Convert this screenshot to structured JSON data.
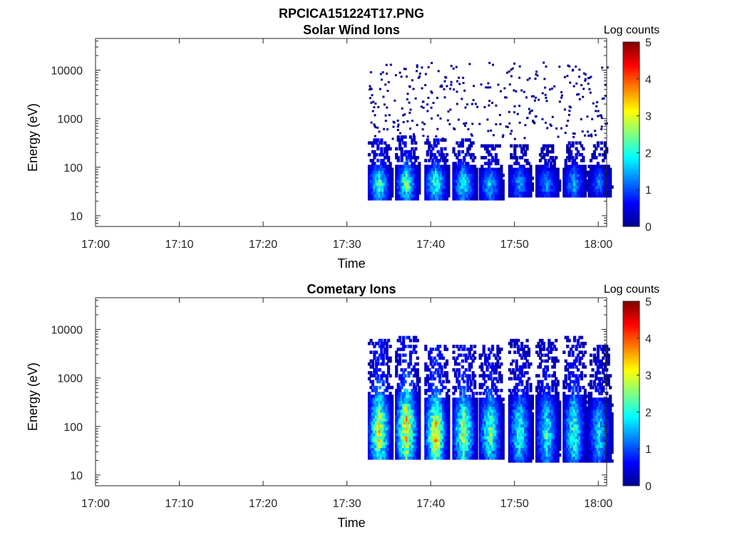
{
  "figure": {
    "title": "RPCICA151224T17.PNG"
  },
  "chart_data": [
    {
      "type": "heatmap",
      "title": "Solar Wind Ions",
      "xlabel": "Time",
      "ylabel": "Energy (eV)",
      "x_ticks": [
        "17:00",
        "17:10",
        "17:20",
        "17:30",
        "17:40",
        "17:50",
        "18:00"
      ],
      "x_range": [
        "17:00",
        "18:01"
      ],
      "y_scale": "log",
      "y_ticks": [
        10,
        100,
        1000,
        10000
      ],
      "y_tick_labels": [
        "10",
        "100",
        "1000",
        "10000"
      ],
      "y_range": [
        6,
        45000
      ],
      "colorbar": {
        "label": "Log counts",
        "range": [
          0,
          5
        ],
        "ticks": [
          "0",
          "1",
          "2",
          "3",
          "4",
          "5"
        ],
        "colormap": "jet"
      },
      "bursts": [
        {
          "time": "17:33:45",
          "energy_low": 22,
          "energy_high": 380,
          "peak_log_counts": 2.6
        },
        {
          "time": "17:37:00",
          "energy_low": 22,
          "energy_high": 450,
          "peak_log_counts": 2.7
        },
        {
          "time": "17:40:30",
          "energy_low": 22,
          "energy_high": 420,
          "peak_log_counts": 2.6
        },
        {
          "time": "17:43:50",
          "energy_low": 22,
          "energy_high": 380,
          "peak_log_counts": 2.4
        },
        {
          "time": "17:47:00",
          "energy_low": 22,
          "energy_high": 300,
          "peak_log_counts": 2.0
        },
        {
          "time": "17:50:30",
          "energy_low": 25,
          "energy_high": 300,
          "peak_log_counts": 1.7
        },
        {
          "time": "17:53:45",
          "energy_low": 25,
          "energy_high": 300,
          "peak_log_counts": 1.6
        },
        {
          "time": "17:57:00",
          "energy_low": 25,
          "energy_high": 350,
          "peak_log_counts": 1.8
        },
        {
          "time": "18:00:00",
          "energy_low": 25,
          "energy_high": 350,
          "peak_log_counts": 1.4
        }
      ],
      "background": {
        "time_start": "17:32:30",
        "time_end": "18:01:00",
        "energy_low": 400,
        "energy_high": 15000,
        "log_counts": 0.1
      }
    },
    {
      "type": "heatmap",
      "title": "Cometary Ions",
      "xlabel": "Time",
      "ylabel": "Energy (eV)",
      "x_ticks": [
        "17:00",
        "17:10",
        "17:20",
        "17:30",
        "17:40",
        "17:50",
        "18:00"
      ],
      "x_range": [
        "17:00",
        "18:01"
      ],
      "y_scale": "log",
      "y_ticks": [
        10,
        100,
        1000,
        10000
      ],
      "y_tick_labels": [
        "10",
        "100",
        "1000",
        "10000"
      ],
      "y_range": [
        6,
        45000
      ],
      "colorbar": {
        "label": "Log counts",
        "range": [
          0,
          5
        ],
        "ticks": [
          "0",
          "1",
          "2",
          "3",
          "4",
          "5"
        ],
        "colormap": "jet"
      },
      "bursts": [
        {
          "time": "17:33:45",
          "energy_low": 20,
          "energy_high": 6000,
          "peak_log_counts": 3.6
        },
        {
          "time": "17:37:00",
          "energy_low": 20,
          "energy_high": 7500,
          "peak_log_counts": 3.9
        },
        {
          "time": "17:40:30",
          "energy_low": 20,
          "energy_high": 5000,
          "peak_log_counts": 3.9
        },
        {
          "time": "17:43:50",
          "energy_low": 20,
          "energy_high": 5000,
          "peak_log_counts": 3.3
        },
        {
          "time": "17:47:00",
          "energy_low": 20,
          "energy_high": 5000,
          "peak_log_counts": 2.8
        },
        {
          "time": "17:50:30",
          "energy_low": 18,
          "energy_high": 6000,
          "peak_log_counts": 2.5
        },
        {
          "time": "17:53:45",
          "energy_low": 18,
          "energy_high": 6000,
          "peak_log_counts": 2.4
        },
        {
          "time": "17:57:00",
          "energy_low": 18,
          "energy_high": 7000,
          "peak_log_counts": 2.6
        },
        {
          "time": "18:00:00",
          "energy_low": 18,
          "energy_high": 5000,
          "peak_log_counts": 2.1
        }
      ]
    }
  ]
}
